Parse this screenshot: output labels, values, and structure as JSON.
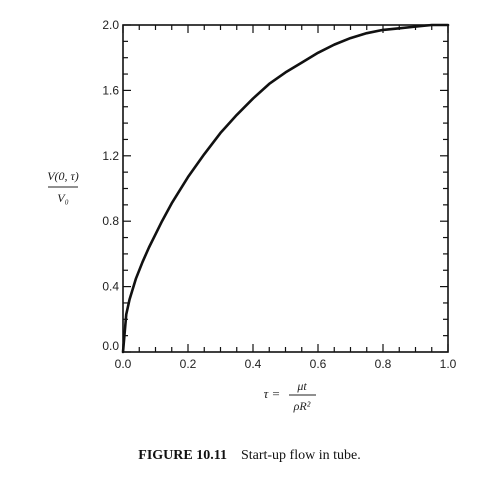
{
  "chart_data": {
    "type": "line",
    "title": "",
    "ylabel": {
      "numerator": "V(0, τ)",
      "denominator": "V₀"
    },
    "xlabel": {
      "prefix": "τ =",
      "numerator": "μt",
      "denominator": "ρR²"
    },
    "xlim": [
      0.0,
      1.0
    ],
    "ylim": [
      0.0,
      2.0
    ],
    "x_ticks": [
      "0.0",
      "0.2",
      "0.4",
      "0.6",
      "0.8",
      "1.0"
    ],
    "y_ticks": [
      "0.0",
      "0.4",
      "0.8",
      "1.2",
      "1.6",
      "2.0"
    ],
    "grid": false,
    "series": [
      {
        "x": [
          0.0,
          0.01,
          0.02,
          0.04,
          0.06,
          0.08,
          0.1,
          0.12,
          0.15,
          0.2,
          0.25,
          0.3,
          0.35,
          0.4,
          0.45,
          0.5,
          0.55,
          0.6,
          0.65,
          0.7,
          0.75,
          0.8,
          0.85,
          0.9,
          0.95,
          1.0
        ],
        "y": [
          0.0,
          0.23,
          0.32,
          0.45,
          0.55,
          0.64,
          0.72,
          0.8,
          0.91,
          1.07,
          1.21,
          1.34,
          1.45,
          1.55,
          1.64,
          1.71,
          1.77,
          1.83,
          1.88,
          1.92,
          1.95,
          1.97,
          1.98,
          1.99,
          2.0,
          2.0
        ]
      }
    ]
  },
  "caption": {
    "figure": "FIGURE 10.11",
    "text": "Start-up flow in tube."
  }
}
